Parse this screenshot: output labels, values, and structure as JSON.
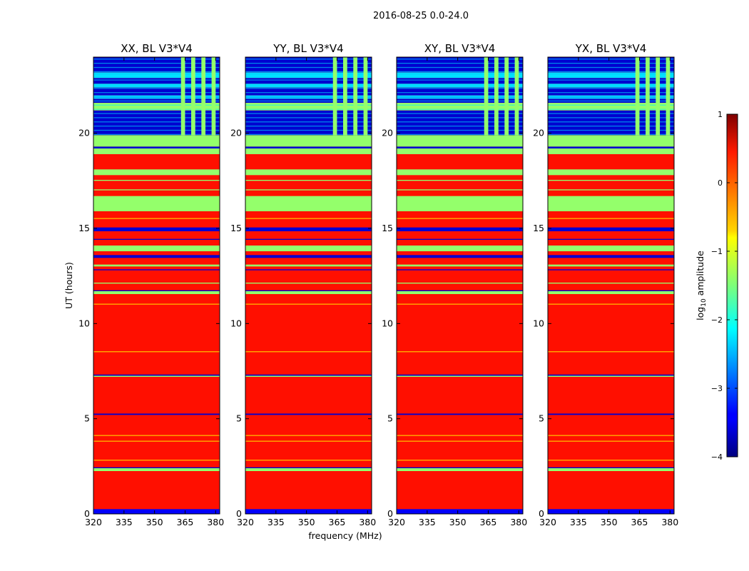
{
  "chart_data": {
    "type": "heatmap",
    "suptitle": "2016-08-25 0.0-24.0",
    "xlabel": "frequency (MHz)",
    "ylabel": "UT (hours)",
    "xlim": [
      320,
      382
    ],
    "ylim": [
      0,
      24
    ],
    "xticks": [
      320,
      335,
      350,
      365,
      380
    ],
    "yticks": [
      0,
      5,
      10,
      15,
      20
    ],
    "colormap": "jet",
    "colorbar": {
      "label_prefix": "log",
      "label_sub": "10",
      "label_suffix": " amplitude",
      "range": [
        -4,
        1
      ],
      "ticks": [
        "1",
        "0",
        "−1",
        "−2",
        "−3",
        "−4"
      ],
      "tick_values": [
        1,
        0,
        -1,
        -2,
        -3,
        -4
      ]
    },
    "panels": [
      {
        "title": "XX, BL V3*V4"
      },
      {
        "title": "YY, BL V3*V4"
      },
      {
        "title": "XY, BL V3*V4"
      },
      {
        "title": "YX, BL V3*V4"
      }
    ],
    "dominant_level": 0.3,
    "bands": [
      {
        "t0": 0.0,
        "t1": 0.25,
        "v": -3.4
      },
      {
        "t0": 2.25,
        "t1": 2.4,
        "v": -1.4
      },
      {
        "t0": 2.4,
        "t1": 2.45,
        "v": -3.6
      },
      {
        "t0": 2.8,
        "t1": 2.84,
        "v": -0.7
      },
      {
        "t0": 3.8,
        "t1": 3.84,
        "v": -0.7
      },
      {
        "t0": 4.1,
        "t1": 4.14,
        "v": -0.7
      },
      {
        "t0": 5.2,
        "t1": 5.27,
        "v": -3.6
      },
      {
        "t0": 7.2,
        "t1": 7.26,
        "v": -1.4
      },
      {
        "t0": 7.26,
        "t1": 7.32,
        "v": -3.6
      },
      {
        "t0": 8.5,
        "t1": 8.54,
        "v": -0.7
      },
      {
        "t0": 11.0,
        "t1": 11.04,
        "v": -0.7
      },
      {
        "t0": 11.55,
        "t1": 11.7,
        "v": -1.4
      },
      {
        "t0": 11.7,
        "t1": 11.75,
        "v": -3.6
      },
      {
        "t0": 12.1,
        "t1": 12.15,
        "v": -1.4
      },
      {
        "t0": 12.8,
        "t1": 12.85,
        "v": -3.6
      },
      {
        "t0": 13.0,
        "t1": 13.1,
        "v": -1.4
      },
      {
        "t0": 13.45,
        "t1": 13.6,
        "v": -3.6
      },
      {
        "t0": 13.8,
        "t1": 14.1,
        "v": -1.4
      },
      {
        "t0": 14.4,
        "t1": 14.45,
        "v": -3.6
      },
      {
        "t0": 14.85,
        "t1": 15.05,
        "v": -3.6
      },
      {
        "t0": 15.5,
        "t1": 15.54,
        "v": -0.7
      },
      {
        "t0": 15.9,
        "t1": 16.7,
        "v": -1.4
      },
      {
        "t0": 17.0,
        "t1": 17.05,
        "v": -1.4
      },
      {
        "t0": 17.5,
        "t1": 17.55,
        "v": -1.4
      },
      {
        "t0": 17.8,
        "t1": 18.1,
        "v": -1.4
      },
      {
        "t0": 18.9,
        "t1": 19.2,
        "v": -1.4
      },
      {
        "t0": 19.2,
        "t1": 19.3,
        "v": -3.6
      },
      {
        "t0": 19.3,
        "t1": 19.9,
        "v": -1.4
      },
      {
        "t0": 19.9,
        "t1": 21.2,
        "v": -3.6
      },
      {
        "t0": 21.2,
        "t1": 21.6,
        "v": -1.4
      },
      {
        "t0": 21.6,
        "t1": 21.8,
        "v": -3.6
      },
      {
        "t0": 21.8,
        "t1": 22.0,
        "v": -2.5
      },
      {
        "t0": 22.0,
        "t1": 22.4,
        "v": -3.6
      },
      {
        "t0": 22.4,
        "t1": 22.6,
        "v": -2.3
      },
      {
        "t0": 22.6,
        "t1": 22.9,
        "v": -3.6
      },
      {
        "t0": 22.9,
        "t1": 23.2,
        "v": -2.3
      },
      {
        "t0": 23.2,
        "t1": 24.0,
        "v": -3.6
      }
    ],
    "rfi_columns_mhz": [
      363,
      368,
      373,
      378
    ],
    "rfi_column_width_mhz": 2,
    "rfi_time_range": [
      19.9,
      24.0
    ],
    "rfi_level": -1.4
  }
}
